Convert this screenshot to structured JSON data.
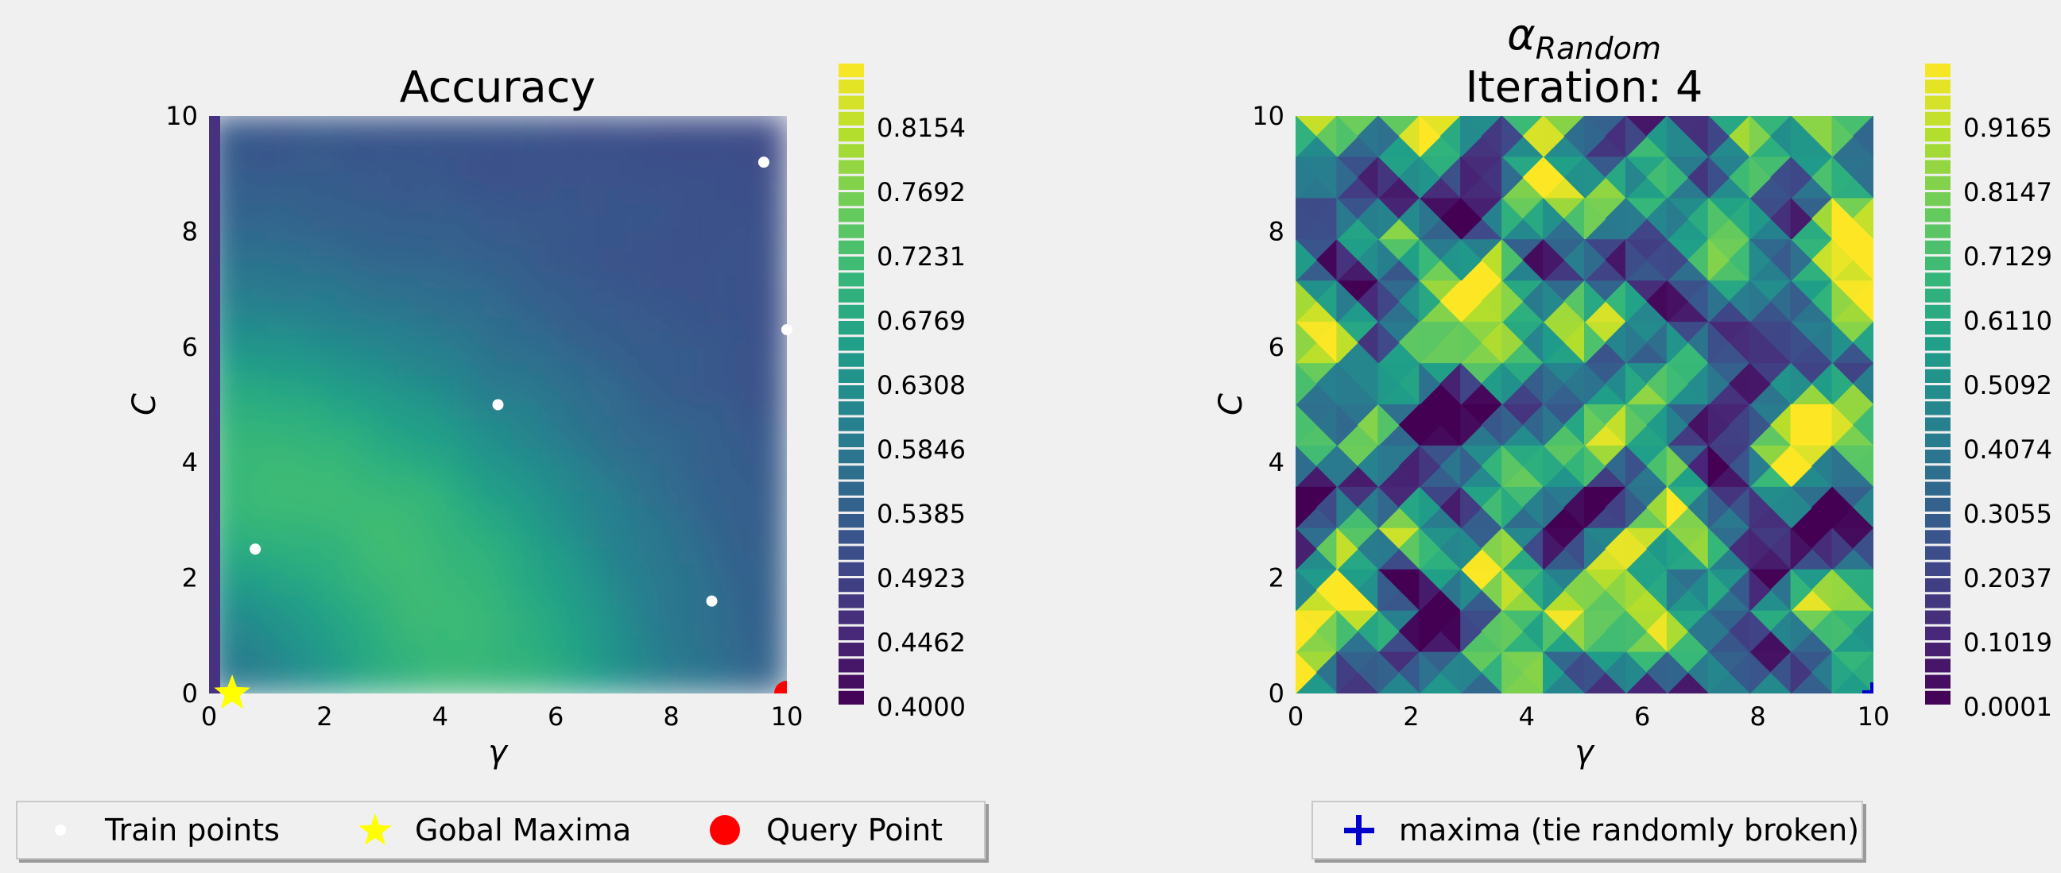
{
  "chart_data": [
    {
      "type": "heatmap",
      "title": "Accuracy",
      "xlabel": "γ",
      "ylabel": "C",
      "xlim": [
        0,
        10
      ],
      "ylim": [
        0,
        10
      ],
      "xticks": [
        "0",
        "2",
        "4",
        "6",
        "8",
        "10"
      ],
      "yticks": [
        "0",
        "2",
        "4",
        "6",
        "8",
        "10"
      ],
      "colorbar": {
        "range": [
          0.4,
          0.8615
        ],
        "tick_labels": [
          "0.8154",
          "0.7692",
          "0.7231",
          "0.6769",
          "0.6308",
          "0.5846",
          "0.5385",
          "0.4923",
          "0.4462",
          "0.4000"
        ],
        "tick_values": [
          0.8154,
          0.7692,
          0.7231,
          0.6769,
          0.6308,
          0.5846,
          0.5385,
          0.4923,
          0.4462,
          0.4
        ]
      },
      "train_points": [
        {
          "x": 0.8,
          "y": 2.5
        },
        {
          "x": 5.0,
          "y": 5.0
        },
        {
          "x": 8.7,
          "y": 1.6
        },
        {
          "x": 9.6,
          "y": 9.2
        },
        {
          "x": 10.0,
          "y": 6.3
        }
      ],
      "global_maxima": {
        "x": 0.4,
        "y": 0.0
      },
      "query_point": {
        "x": 10.0,
        "y": 0.0
      },
      "legend": {
        "placement": "bottom",
        "items": [
          "Train points",
          "Gobal Maxima",
          "Query Point"
        ]
      }
    },
    {
      "type": "heatmap",
      "title_symbol": "α",
      "title_subscript": "Random",
      "title_line2": "Iteration: 4",
      "xlabel": "γ",
      "ylabel": "C",
      "xlim": [
        0,
        10
      ],
      "ylim": [
        0,
        10
      ],
      "xticks": [
        "0",
        "2",
        "4",
        "6",
        "8",
        "10"
      ],
      "yticks": [
        "0",
        "2",
        "4",
        "6",
        "8",
        "10"
      ],
      "colorbar": {
        "range": [
          0.0001,
          1.0184
        ],
        "tick_labels": [
          "0.9165",
          "0.8147",
          "0.7129",
          "0.6110",
          "0.5092",
          "0.4074",
          "0.3055",
          "0.2037",
          "0.1019",
          "0.0001"
        ],
        "tick_values": [
          0.9165,
          0.8147,
          0.7129,
          0.611,
          0.5092,
          0.4074,
          0.3055,
          0.2037,
          0.1019,
          0.0001
        ]
      },
      "maxima": {
        "x": 10.0,
        "y": 0.0
      },
      "legend": {
        "placement": "bottom",
        "items": [
          "maxima (tie randomly broken)"
        ]
      }
    }
  ],
  "colors": {
    "train_point": "#ffffff",
    "global_maxima": "#ffff00",
    "query_point": "#ff0000",
    "maxima_marker": "#0000cc",
    "background": "#f0f0f0"
  }
}
